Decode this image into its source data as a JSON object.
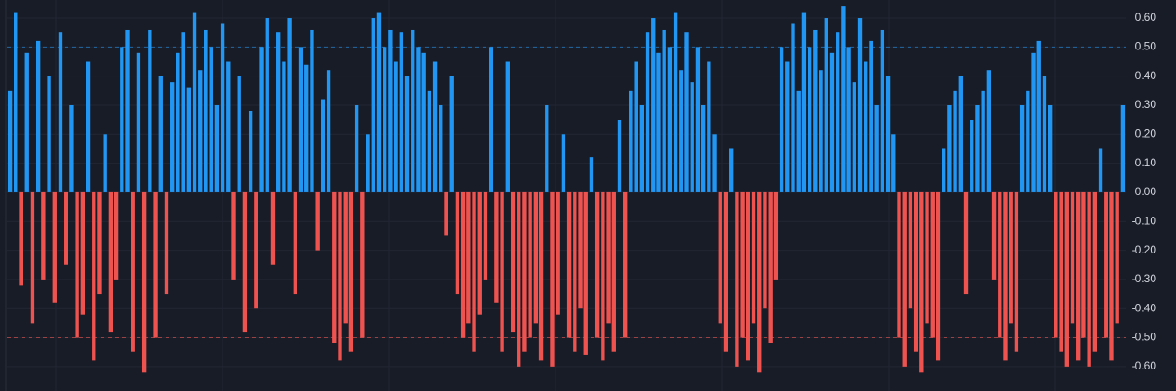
{
  "chart_data": {
    "type": "bar",
    "values": [
      0.35,
      0.62,
      -0.32,
      0.48,
      -0.45,
      0.52,
      -0.3,
      0.4,
      -0.38,
      0.55,
      -0.25,
      0.3,
      -0.5,
      -0.42,
      0.45,
      -0.58,
      -0.35,
      0.2,
      -0.48,
      -0.3,
      0.5,
      0.56,
      -0.55,
      0.48,
      -0.62,
      0.56,
      -0.5,
      0.4,
      -0.35,
      0.38,
      0.48,
      0.55,
      0.36,
      0.62,
      0.42,
      0.56,
      0.5,
      0.3,
      0.58,
      0.45,
      -0.3,
      0.4,
      -0.48,
      0.28,
      -0.4,
      0.5,
      0.6,
      -0.25,
      0.55,
      0.45,
      0.6,
      -0.35,
      0.5,
      0.44,
      0.56,
      -0.2,
      0.32,
      0.42,
      -0.52,
      -0.58,
      -0.45,
      -0.55,
      0.3,
      -0.5,
      0.2,
      0.6,
      0.62,
      0.5,
      0.56,
      0.45,
      0.55,
      0.4,
      0.56,
      0.5,
      0.48,
      0.35,
      0.45,
      0.3,
      -0.15,
      0.4,
      -0.35,
      -0.5,
      -0.45,
      -0.55,
      -0.42,
      -0.3,
      0.5,
      -0.38,
      -0.55,
      0.45,
      -0.48,
      -0.6,
      -0.55,
      -0.5,
      -0.45,
      -0.58,
      0.3,
      -0.6,
      -0.42,
      0.2,
      -0.5,
      -0.55,
      -0.4,
      -0.56,
      0.12,
      -0.5,
      -0.58,
      -0.45,
      -0.55,
      0.25,
      -0.5,
      0.35,
      0.45,
      0.3,
      0.55,
      0.6,
      0.48,
      0.56,
      0.5,
      0.62,
      0.42,
      0.55,
      0.38,
      0.5,
      0.3,
      0.45,
      0.2,
      -0.45,
      -0.55,
      0.15,
      -0.6,
      -0.5,
      -0.58,
      -0.45,
      -0.62,
      -0.4,
      -0.52,
      -0.3,
      0.5,
      0.45,
      0.58,
      0.35,
      0.62,
      0.5,
      0.56,
      0.42,
      0.6,
      0.48,
      0.55,
      0.64,
      0.5,
      0.38,
      0.6,
      0.45,
      0.52,
      0.3,
      0.56,
      0.4,
      0.2,
      -0.5,
      -0.6,
      -0.4,
      -0.55,
      -0.62,
      -0.45,
      -0.5,
      -0.58,
      0.15,
      0.3,
      0.35,
      0.4,
      -0.35,
      0.25,
      0.3,
      0.35,
      0.42,
      -0.3,
      -0.5,
      -0.58,
      -0.45,
      -0.55,
      0.3,
      0.35,
      0.48,
      0.52,
      0.4,
      0.3,
      -0.5,
      -0.55,
      -0.6,
      -0.45,
      -0.58,
      -0.5,
      -0.6,
      -0.55,
      0.15,
      -0.5,
      -0.58,
      -0.45,
      0.3
    ],
    "positive_color": "#2196f3",
    "negative_color": "#ef5350",
    "ylim": [
      -0.684,
      0.662
    ],
    "yticks": [
      {
        "value": 0.6,
        "label": "0.60"
      },
      {
        "value": 0.5,
        "label": "0.50"
      },
      {
        "value": 0.4,
        "label": "0.40"
      },
      {
        "value": 0.3,
        "label": "0.30"
      },
      {
        "value": 0.2,
        "label": "0.20"
      },
      {
        "value": 0.1,
        "label": "0.10"
      },
      {
        "value": 0,
        "label": "0.00"
      },
      {
        "value": -0.1,
        "label": "-0.10"
      },
      {
        "value": -0.2,
        "label": "-0.20"
      },
      {
        "value": -0.3,
        "label": "-0.30"
      },
      {
        "value": -0.4,
        "label": "-0.40"
      },
      {
        "value": -0.5,
        "label": "-0.50"
      },
      {
        "value": -0.6,
        "label": "-0.60"
      }
    ],
    "reference_lines": [
      0.5,
      -0.5
    ],
    "grid": true
  }
}
